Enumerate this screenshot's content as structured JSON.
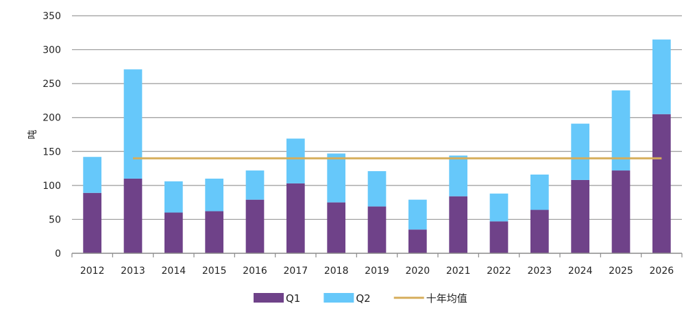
{
  "chart_data": {
    "type": "bar",
    "stacked": true,
    "categories": [
      "2012",
      "2013",
      "2014",
      "2015",
      "2016",
      "2017",
      "2018",
      "2019",
      "2020",
      "2021",
      "2022",
      "2023",
      "2024",
      "2025",
      "2026"
    ],
    "series": [
      {
        "name": "Q1",
        "kind": "bar",
        "color": "#6f4289",
        "values": [
          89,
          110,
          60,
          62,
          79,
          103,
          75,
          69,
          35,
          84,
          47,
          64,
          108,
          122,
          205
        ]
      },
      {
        "name": "Q2",
        "kind": "bar",
        "color": "#66c8fa",
        "values": [
          53,
          161,
          46,
          48,
          43,
          66,
          72,
          52,
          44,
          60,
          41,
          52,
          83,
          118,
          110
        ]
      },
      {
        "name": "十年均值",
        "kind": "line",
        "color": "#d6ad5a",
        "values": [
          null,
          140,
          140,
          140,
          140,
          140,
          140,
          140,
          140,
          140,
          140,
          140,
          140,
          140,
          140
        ]
      }
    ],
    "ylabel": "吨",
    "ylim": [
      0,
      350
    ],
    "yticks": [
      0,
      50,
      100,
      150,
      200,
      250,
      300,
      350
    ],
    "grid": true,
    "legend_position": "bottom-center"
  }
}
